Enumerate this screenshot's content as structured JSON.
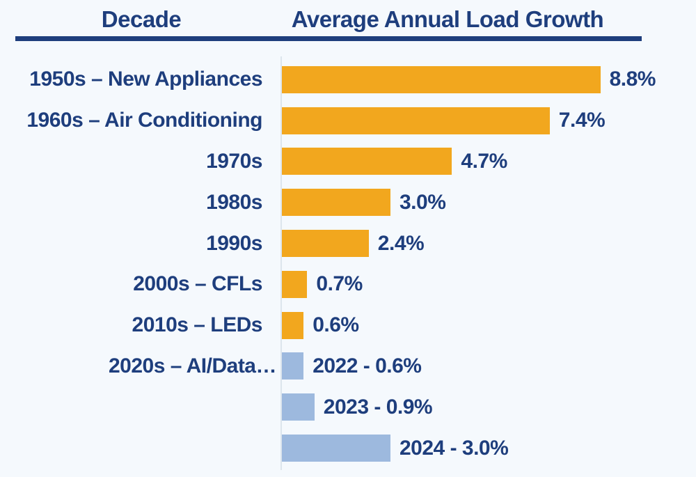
{
  "header": {
    "left_title": "Decade",
    "right_title": "Average Annual Load Growth"
  },
  "chart_data": {
    "type": "bar",
    "orientation": "horizontal",
    "title": "Average Annual Load Growth",
    "value_unit": "percent annual load growth",
    "xlim": [
      0,
      10
    ],
    "grid": false,
    "legend": false,
    "rows": [
      {
        "label": "1950s – New Appliances",
        "value": 8.8,
        "value_label": "8.8%",
        "color": "gold"
      },
      {
        "label": "1960s – Air Conditioning",
        "value": 7.4,
        "value_label": "7.4%",
        "color": "gold"
      },
      {
        "label": "1970s",
        "value": 4.7,
        "value_label": "4.7%",
        "color": "gold"
      },
      {
        "label": "1980s",
        "value": 3.0,
        "value_label": "3.0%",
        "color": "gold"
      },
      {
        "label": "1990s",
        "value": 2.4,
        "value_label": "2.4%",
        "color": "gold"
      },
      {
        "label": "2000s – CFLs",
        "value": 0.7,
        "value_label": "0.7%",
        "color": "gold"
      },
      {
        "label": "2010s – LEDs",
        "value": 0.6,
        "value_label": "0.6%",
        "color": "gold"
      },
      {
        "label": "2020s – AI/Data…",
        "value": 0.6,
        "value_label": "2022 - 0.6%",
        "color": "lightblue"
      },
      {
        "label": "",
        "value": 0.9,
        "value_label": "2023 - 0.9%",
        "color": "lightblue"
      },
      {
        "label": "",
        "value": 3.0,
        "value_label": "2024 - 3.0%",
        "color": "lightblue"
      }
    ]
  },
  "colors": {
    "gold": "#F2A71E",
    "lightblue": "#9DB9DE",
    "navy": "#1E3E7D",
    "background": "#F5F9FD",
    "axis_line": "#DCE5ED"
  }
}
